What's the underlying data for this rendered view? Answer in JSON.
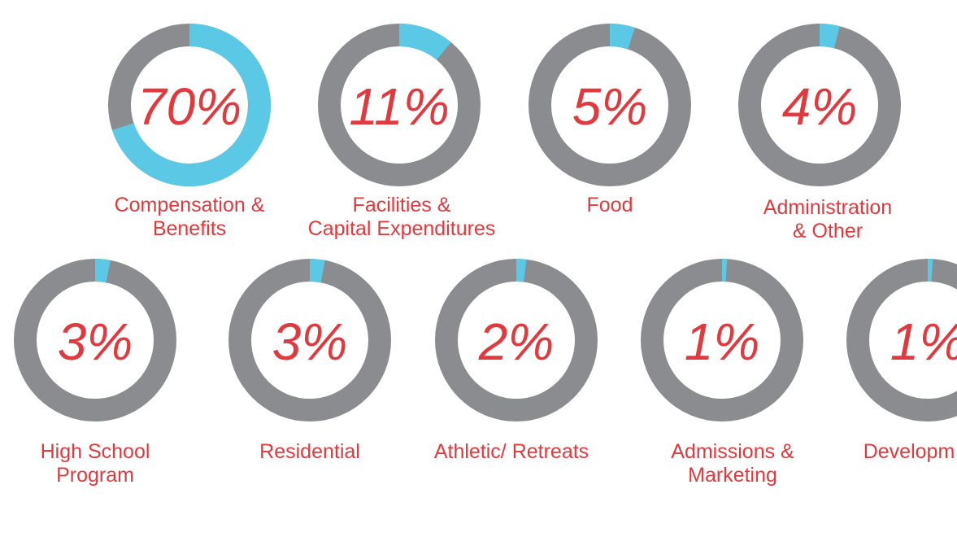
{
  "colors": {
    "accent": "#5bc8e6",
    "track": "#8a8c8f",
    "text": "#e03a3e"
  },
  "chart_data": {
    "type": "donut",
    "items": [
      {
        "name": "compensation-benefits",
        "value": 70,
        "percent_label": "70%",
        "label_lines": [
          "Compensation &",
          "Benefits"
        ]
      },
      {
        "name": "facilities-capital",
        "value": 11,
        "percent_label": "11%",
        "label_lines": [
          "Facilities &",
          "Capital Expenditures"
        ]
      },
      {
        "name": "food",
        "value": 5,
        "percent_label": "5%",
        "label_lines": [
          "Food"
        ]
      },
      {
        "name": "administration-other",
        "value": 4,
        "percent_label": "4%",
        "label_lines": [
          "Administration",
          "& Other"
        ]
      },
      {
        "name": "high-school-program",
        "value": 3,
        "percent_label": "3%",
        "label_lines": [
          "High School",
          "Program"
        ]
      },
      {
        "name": "residential",
        "value": 3,
        "percent_label": "3%",
        "label_lines": [
          "Residential"
        ]
      },
      {
        "name": "athletic-retreats",
        "value": 2,
        "percent_label": "2%",
        "label_lines": [
          "Athletic/ Retreats"
        ]
      },
      {
        "name": "admissions-marketing",
        "value": 1,
        "percent_label": "1%",
        "label_lines": [
          "Admissions &",
          "Marketing"
        ]
      },
      {
        "name": "development",
        "value": 1,
        "percent_label": "1%",
        "label_lines": [
          "Developm"
        ]
      }
    ]
  }
}
